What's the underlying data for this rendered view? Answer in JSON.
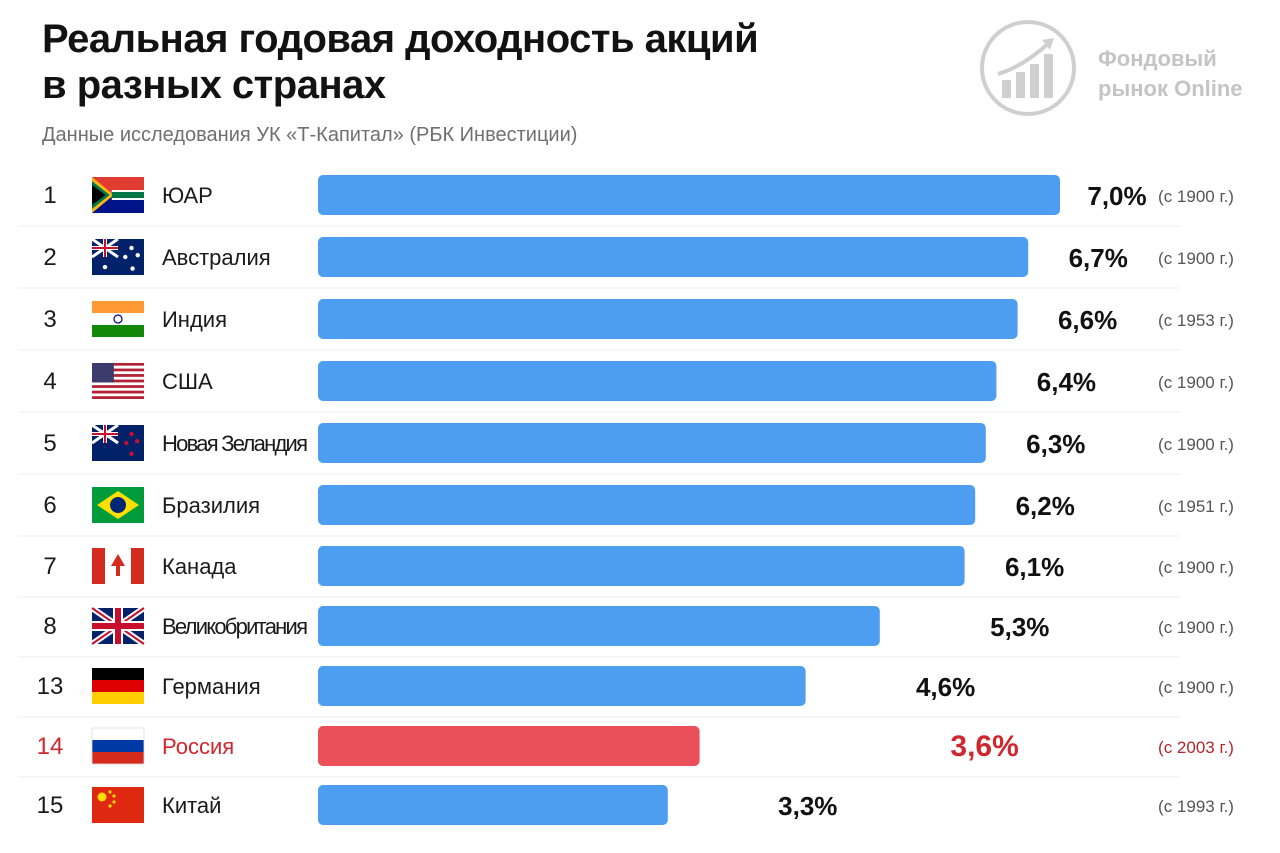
{
  "header": {
    "title_line1": "Реальная годовая доходность акций",
    "title_line2": "в разных странах",
    "subtitle": "Данные исследования УК «Т-Капитал» (РБК Инвестиции)"
  },
  "logo": {
    "line1": "Фондовый",
    "line2": "рынок Online"
  },
  "colors": {
    "bar": "#4d9ef0",
    "highlight_bar": "#ea4f5a",
    "highlight_text": "#d0262d"
  },
  "chart_data": {
    "type": "bar",
    "orientation": "horizontal",
    "ylabel": "",
    "xlabel": "",
    "xlim": [
      0,
      7
    ],
    "grid": false,
    "legend": "none",
    "rows": [
      {
        "rank": "1",
        "country": "ЮАР",
        "flag": "flag-south-africa",
        "value": 7.0,
        "value_label": "7,0%",
        "since": "(с 1900 г.)"
      },
      {
        "rank": "2",
        "country": "Австралия",
        "flag": "flag-australia",
        "value": 6.7,
        "value_label": "6,7%",
        "since": "(с 1900 г.)"
      },
      {
        "rank": "3",
        "country": "Индия",
        "flag": "flag-india",
        "value": 6.6,
        "value_label": "6,6%",
        "since": "(с 1953 г.)"
      },
      {
        "rank": "4",
        "country": "США",
        "flag": "flag-usa",
        "value": 6.4,
        "value_label": "6,4%",
        "since": "(с 1900 г.)"
      },
      {
        "rank": "5",
        "country": "Новая Зеландия",
        "flag": "flag-new-zealand",
        "value": 6.3,
        "value_label": "6,3%",
        "since": "(с 1900 г.)"
      },
      {
        "rank": "6",
        "country": "Бразилия",
        "flag": "flag-brazil",
        "value": 6.2,
        "value_label": "6,2%",
        "since": "(с 1951 г.)"
      },
      {
        "rank": "7",
        "country": "Канада",
        "flag": "flag-canada",
        "value": 6.1,
        "value_label": "6,1%",
        "since": "(с 1900 г.)"
      },
      {
        "rank": "8",
        "country": "Великобритания",
        "flag": "flag-united-kingdom",
        "value": 5.3,
        "value_label": "5,3%",
        "since": "(с 1900 г.)"
      },
      {
        "rank": "13",
        "country": "Германия",
        "flag": "flag-germany",
        "value": 4.6,
        "value_label": "4,6%",
        "since": "(с 1900 г.)"
      },
      {
        "rank": "14",
        "country": "Россия",
        "flag": "flag-russia",
        "value": 3.6,
        "value_label": "3,6%",
        "since": "(с 2003 г.)",
        "highlight": true
      },
      {
        "rank": "15",
        "country": "Китай",
        "flag": "flag-china",
        "value": 3.3,
        "value_label": "3,3%",
        "since": "(с 1993 г.)"
      }
    ]
  }
}
